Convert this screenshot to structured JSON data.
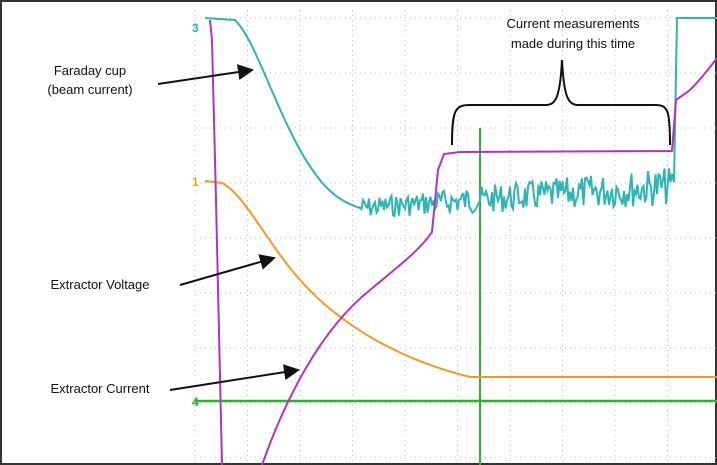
{
  "labels": {
    "faraday_cup": [
      "Faraday cup",
      "(beam current)"
    ],
    "extractor_voltage": "Extractor Voltage",
    "extractor_current": "Extractor Current",
    "measurement_note": [
      "Current measurements",
      "made during this time"
    ]
  },
  "channel_markers": {
    "ch3": "3",
    "ch1": "1",
    "ch4": "4"
  }
}
